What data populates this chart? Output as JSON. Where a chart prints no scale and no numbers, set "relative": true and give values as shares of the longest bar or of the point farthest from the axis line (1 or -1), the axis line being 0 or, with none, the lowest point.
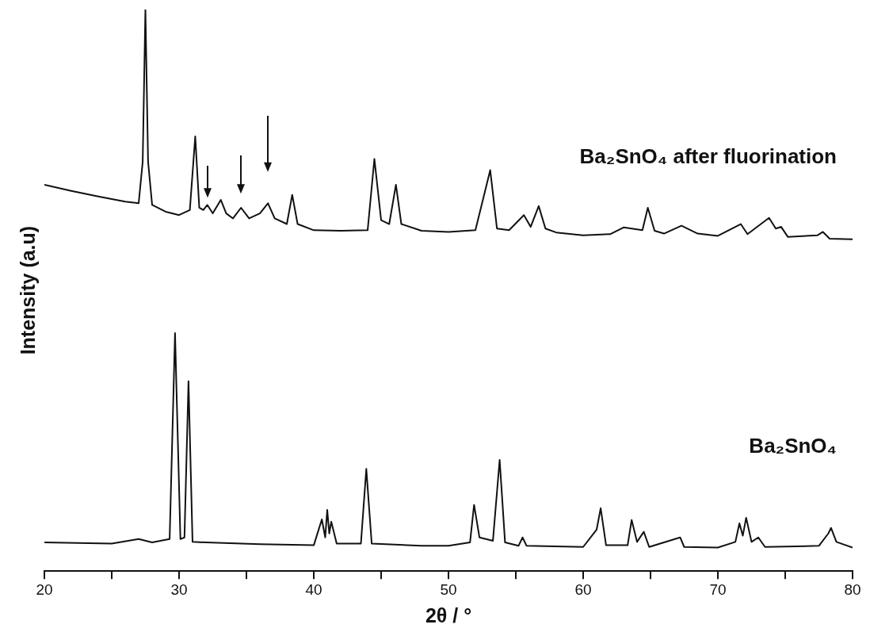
{
  "chart_data": {
    "type": "line",
    "relative": true,
    "xlabel": "2θ / °",
    "ylabel": "Intensity (a.u)",
    "xlim": [
      20,
      80
    ],
    "xticks": [
      20,
      {
        "value": 25,
        "label": null
      },
      30,
      {
        "value": 35,
        "label": null
      },
      40,
      {
        "value": 45,
        "label": null
      },
      50,
      {
        "value": 55,
        "label": null
      },
      60,
      {
        "value": 65,
        "label": null
      },
      70,
      {
        "value": 75,
        "label": null
      },
      80
    ],
    "grid": false,
    "legend": false,
    "marker": "none",
    "line_style": "solid",
    "series": [
      {
        "name": "Ba₂SnO₄ after fluorination",
        "color": "#111111",
        "x": [
          20,
          22,
          24,
          26,
          27,
          27.3,
          27.5,
          27.7,
          28,
          29,
          30,
          30.8,
          31.2,
          31.5,
          31.8,
          32.1,
          32.5,
          33.1,
          33.5,
          34,
          34.6,
          35.2,
          36,
          36.6,
          37.1,
          38,
          38.4,
          38.8,
          40,
          42,
          44,
          44.5,
          45,
          45.6,
          46.1,
          46.5,
          48,
          50,
          52,
          53.1,
          53.6,
          54.5,
          55.6,
          56.1,
          56.7,
          57.2,
          58,
          60,
          62,
          63,
          64.4,
          64.8,
          65.3,
          66,
          67.3,
          68.5,
          70,
          71.7,
          72.2,
          73.8,
          74.3,
          74.7,
          75.2,
          77.4,
          77.8,
          78.3,
          80
        ],
        "values": [
          0.688,
          0.677,
          0.667,
          0.658,
          0.655,
          0.729,
          1,
          0.729,
          0.652,
          0.64,
          0.634,
          0.643,
          0.774,
          0.647,
          0.643,
          0.652,
          0.637,
          0.661,
          0.637,
          0.628,
          0.647,
          0.628,
          0.637,
          0.655,
          0.628,
          0.618,
          0.67,
          0.618,
          0.607,
          0.606,
          0.607,
          0.734,
          0.625,
          0.618,
          0.688,
          0.618,
          0.606,
          0.604,
          0.607,
          0.714,
          0.61,
          0.607,
          0.634,
          0.613,
          0.65,
          0.61,
          0.603,
          0.598,
          0.6,
          0.612,
          0.607,
          0.647,
          0.606,
          0.601,
          0.615,
          0.601,
          0.597,
          0.618,
          0.6,
          0.629,
          0.61,
          0.613,
          0.595,
          0.598,
          0.604,
          0.592,
          0.591
        ]
      },
      {
        "name": "Ba₂SnO₄",
        "color": "#111111",
        "x": [
          20,
          25,
          27,
          28,
          29.3,
          29.7,
          30.1,
          30.4,
          30.7,
          31,
          32,
          36,
          40,
          40.6,
          40.85,
          41,
          41.15,
          41.3,
          41.7,
          43.5,
          43.9,
          44.3,
          48,
          50,
          51.6,
          51.9,
          52.3,
          53.3,
          53.8,
          54.2,
          55.2,
          55.5,
          55.8,
          60,
          61,
          61.3,
          61.7,
          63.3,
          63.6,
          64,
          64.5,
          64.9,
          67.2,
          67.5,
          70,
          71.3,
          71.6,
          71.85,
          72.1,
          72.5,
          73,
          73.5,
          77.5,
          78.2,
          78.4,
          78.8,
          80
        ],
        "values": [
          0.051,
          0.049,
          0.057,
          0.051,
          0.057,
          0.424,
          0.057,
          0.06,
          0.338,
          0.052,
          0.051,
          0.048,
          0.046,
          0.092,
          0.06,
          0.109,
          0.067,
          0.088,
          0.049,
          0.049,
          0.182,
          0.049,
          0.045,
          0.045,
          0.051,
          0.118,
          0.06,
          0.054,
          0.198,
          0.051,
          0.045,
          0.06,
          0.045,
          0.043,
          0.074,
          0.112,
          0.046,
          0.046,
          0.091,
          0.052,
          0.07,
          0.043,
          0.06,
          0.043,
          0.042,
          0.052,
          0.085,
          0.063,
          0.095,
          0.052,
          0.06,
          0.043,
          0.045,
          0.067,
          0.077,
          0.052,
          0.042
        ]
      }
    ]
  }
}
